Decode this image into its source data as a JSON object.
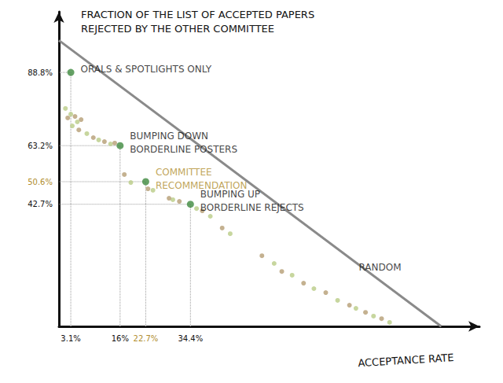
{
  "chart_data": {
    "type": "scatter",
    "title": "FRACTION OF THE LIST OF ACCEPTED PAPERS\nREJECTED BY THE OTHER COMMITTEE",
    "x_label": "ACCEPTANCE RATE",
    "xlim": [
      0,
      110
    ],
    "ylim": [
      0,
      110
    ],
    "xticks": [
      {
        "value": 3.1,
        "label": "3.1%"
      },
      {
        "value": 16,
        "label": "16%"
      },
      {
        "value": 22.7,
        "label": "22.7%",
        "color": "#b08d2e"
      },
      {
        "value": 34.4,
        "label": "34.4%"
      }
    ],
    "yticks": [
      {
        "value": 42.7,
        "label": "42.7%"
      },
      {
        "value": 50.6,
        "label": "50.6%",
        "color": "#b08d2e"
      },
      {
        "value": 63.2,
        "label": "63.2%"
      },
      {
        "value": 88.8,
        "label": "88.8%"
      }
    ],
    "grid": false,
    "series": [
      {
        "type": "scatter",
        "color": "#b9cc86",
        "x": [
          1.7,
          3.1,
          4.8,
          3.5,
          7.3,
          10.4,
          13.5,
          18.8,
          24.6,
          29.8,
          36.0,
          39.6,
          44.8,
          56.3,
          61.0,
          66.7,
          72.9,
          77.7,
          82.3,
          86.5
        ],
        "y": [
          76.2,
          74.2,
          71.5,
          70.1,
          67.4,
          65.2,
          63.8,
          50.3,
          47.6,
          44.3,
          41.2,
          38.5,
          32.4,
          22.0,
          17.9,
          13.2,
          9.1,
          6.3,
          3.6,
          1.4
        ]
      },
      {
        "type": "scatter",
        "color": "#b59e74",
        "x": [
          2.3,
          4.2,
          5.8,
          5.2,
          9.0,
          11.9,
          14.6,
          17.1,
          23.3,
          28.8,
          31.5,
          37.5,
          42.7,
          53.1,
          58.3,
          64.0,
          69.8,
          76.0,
          80.2,
          84.4
        ],
        "y": [
          72.9,
          73.4,
          72.3,
          68.7,
          66.0,
          64.6,
          64.1,
          53.1,
          48.1,
          44.8,
          43.7,
          40.4,
          34.4,
          24.7,
          19.2,
          15.1,
          11.8,
          7.4,
          4.9,
          2.7
        ]
      },
      {
        "type": "line",
        "color": "#8a8a8a",
        "x": [
          0,
          100
        ],
        "y": [
          100,
          0
        ]
      }
    ],
    "points": [
      {
        "x": 3.1,
        "y": 88.8,
        "label": "ORALS & SPOTLIGHTS ONLY",
        "color": "#3f8a3f",
        "label_color": "#111111"
      },
      {
        "x": 16,
        "y": 63.2,
        "label": "BUMPING DOWN\nBORDERLINE POSTERS",
        "color": "#3f8a3f",
        "label_color": "#111111"
      },
      {
        "x": 22.7,
        "y": 50.6,
        "label": "COMMITTEE\nRECOMMENDATION",
        "color": "#3f8a3f",
        "label_color": "#b08d2e"
      },
      {
        "x": 34.4,
        "y": 42.7,
        "label": "BUMPING UP\nBORDERLINE REJECTS",
        "color": "#3f8a3f",
        "label_color": "#111111"
      }
    ],
    "annotations": [
      {
        "text": "RANDOM",
        "x": 84,
        "y": 20.6
      }
    ]
  }
}
